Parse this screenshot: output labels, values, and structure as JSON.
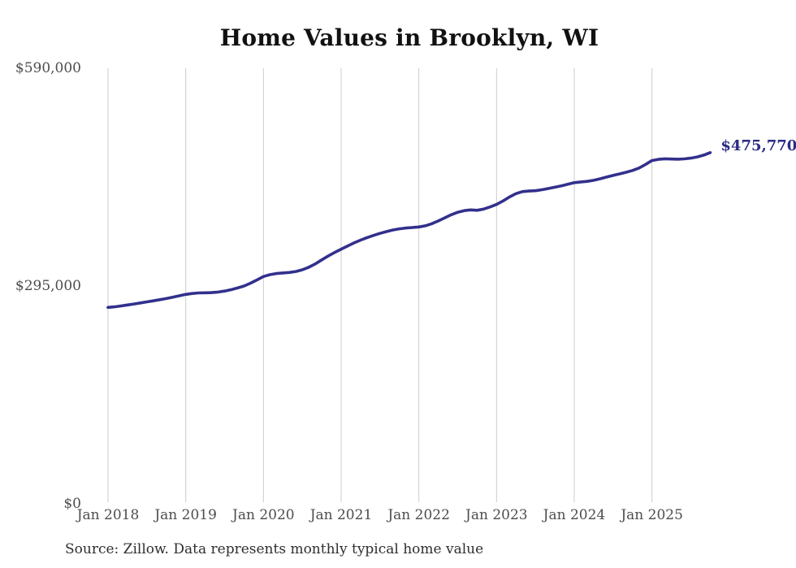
{
  "page": {
    "title": "Home Values in Brooklyn, WI",
    "source_note": "Source: Zillow. Data represents monthly typical home value"
  },
  "colors": {
    "line": "#32308c",
    "end_label": "#2c2a86",
    "gridline": "#cccccc",
    "axis_text": "#4d4d4d",
    "title_text": "#111111"
  },
  "chart_data": {
    "type": "line",
    "title": "Home Values in Brooklyn, WI",
    "xlabel": "",
    "ylabel": "",
    "ylim": [
      0,
      590000
    ],
    "grid": "vertical-only",
    "legend": "none",
    "y_ticks": [
      {
        "value": 590000,
        "label": "$590,000"
      },
      {
        "value": 295000,
        "label": "$295,000"
      },
      {
        "value": 0,
        "label": "$0"
      }
    ],
    "x_ticks": [
      {
        "x": "2018-01",
        "label": "Jan 2018"
      },
      {
        "x": "2019-01",
        "label": "Jan 2019"
      },
      {
        "x": "2020-01",
        "label": "Jan 2020"
      },
      {
        "x": "2021-01",
        "label": "Jan 2021"
      },
      {
        "x": "2022-01",
        "label": "Jan 2022"
      },
      {
        "x": "2023-01",
        "label": "Jan 2023"
      },
      {
        "x": "2024-01",
        "label": "Jan 2024"
      },
      {
        "x": "2025-01",
        "label": "Jan 2025"
      }
    ],
    "end_label": "$475,770",
    "series": [
      {
        "name": "Typical home value",
        "color": "#32308c",
        "x": [
          "2018-01",
          "2018-02",
          "2018-03",
          "2018-04",
          "2018-05",
          "2018-06",
          "2018-07",
          "2018-08",
          "2018-09",
          "2018-10",
          "2018-11",
          "2018-12",
          "2019-01",
          "2019-02",
          "2019-03",
          "2019-04",
          "2019-05",
          "2019-06",
          "2019-07",
          "2019-08",
          "2019-09",
          "2019-10",
          "2019-11",
          "2019-12",
          "2020-01",
          "2020-02",
          "2020-03",
          "2020-04",
          "2020-05",
          "2020-06",
          "2020-07",
          "2020-08",
          "2020-09",
          "2020-10",
          "2020-11",
          "2020-12",
          "2021-01",
          "2021-02",
          "2021-03",
          "2021-04",
          "2021-05",
          "2021-06",
          "2021-07",
          "2021-08",
          "2021-09",
          "2021-10",
          "2021-11",
          "2021-12",
          "2022-01",
          "2022-02",
          "2022-03",
          "2022-04",
          "2022-05",
          "2022-06",
          "2022-07",
          "2022-08",
          "2022-09",
          "2022-10",
          "2022-11",
          "2022-12",
          "2023-01",
          "2023-02",
          "2023-03",
          "2023-04",
          "2023-05",
          "2023-06",
          "2023-07",
          "2023-08",
          "2023-09",
          "2023-10",
          "2023-11",
          "2023-12",
          "2024-01",
          "2024-02",
          "2024-03",
          "2024-04",
          "2024-05",
          "2024-06",
          "2024-07",
          "2024-08",
          "2024-09",
          "2024-10",
          "2024-11",
          "2024-12",
          "2025-01",
          "2025-02",
          "2025-03",
          "2025-04",
          "2025-05",
          "2025-06",
          "2025-07",
          "2025-08",
          "2025-09",
          "2025-10"
        ],
        "values": [
          266000,
          266800,
          268000,
          269300,
          270700,
          272100,
          273500,
          275000,
          276500,
          278100,
          279900,
          281800,
          283700,
          284900,
          285600,
          285900,
          286100,
          286800,
          288200,
          290100,
          292400,
          295000,
          298800,
          303300,
          307900,
          310400,
          311900,
          312700,
          313400,
          314700,
          317000,
          320400,
          324900,
          330400,
          335600,
          340500,
          345000,
          349300,
          353400,
          357200,
          360600,
          363600,
          366300,
          368800,
          370900,
          372500,
          373600,
          374300,
          375000,
          376600,
          379400,
          383200,
          387400,
          391500,
          394900,
          397200,
          398100,
          397600,
          399200,
          402100,
          405500,
          410300,
          415600,
          420200,
          422900,
          423700,
          424100,
          425400,
          427100,
          428800,
          430700,
          432800,
          435000,
          436000,
          436800,
          438200,
          440300,
          442600,
          444800,
          446900,
          449100,
          451500,
          454800,
          459700,
          465000,
          466600,
          467400,
          467100,
          466800,
          467300,
          468300,
          469900,
          472300,
          475770
        ]
      }
    ]
  }
}
